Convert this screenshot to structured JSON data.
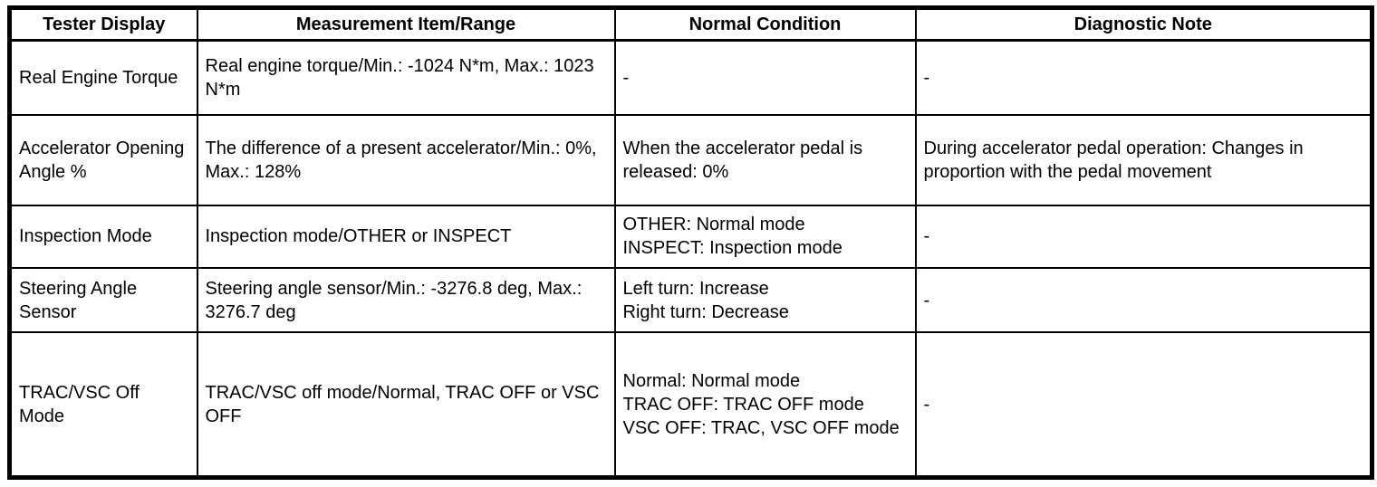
{
  "colors": {
    "border": "#000000",
    "background": "#ffffff",
    "text": "#000000"
  },
  "table": {
    "columns": [
      "Tester Display",
      "Measurement Item/Range",
      "Normal Condition",
      "Diagnostic Note"
    ],
    "rows": [
      {
        "tester_display": "Real Engine Torque",
        "measurement_item_range": "Real engine torque/Min.: -1024 N*m, Max.: 1023 N*m",
        "normal_condition": "-",
        "diagnostic_note": "-"
      },
      {
        "tester_display": "Accelerator Opening Angle %",
        "measurement_item_range": "The difference of a present accelerator/Min.: 0%, Max.: 128%",
        "normal_condition": "When the accelerator pedal is released: 0%",
        "diagnostic_note": "During accelerator pedal operation: Changes in proportion with the pedal movement"
      },
      {
        "tester_display": "Inspection Mode",
        "measurement_item_range": "Inspection mode/OTHER or INSPECT",
        "normal_condition": "OTHER: Normal mode\nINSPECT: Inspection mode",
        "diagnostic_note": "-"
      },
      {
        "tester_display": "Steering Angle Sensor",
        "measurement_item_range": "Steering angle sensor/Min.: -3276.8 deg, Max.: 3276.7 deg",
        "normal_condition": "Left turn: Increase\nRight turn: Decrease",
        "diagnostic_note": "-"
      },
      {
        "tester_display": "TRAC/VSC Off Mode",
        "measurement_item_range": "TRAC/VSC off mode/Normal, TRAC OFF or VSC OFF",
        "normal_condition": "Normal: Normal mode\nTRAC OFF: TRAC OFF mode\nVSC OFF: TRAC, VSC OFF mode",
        "diagnostic_note": "-"
      }
    ]
  }
}
